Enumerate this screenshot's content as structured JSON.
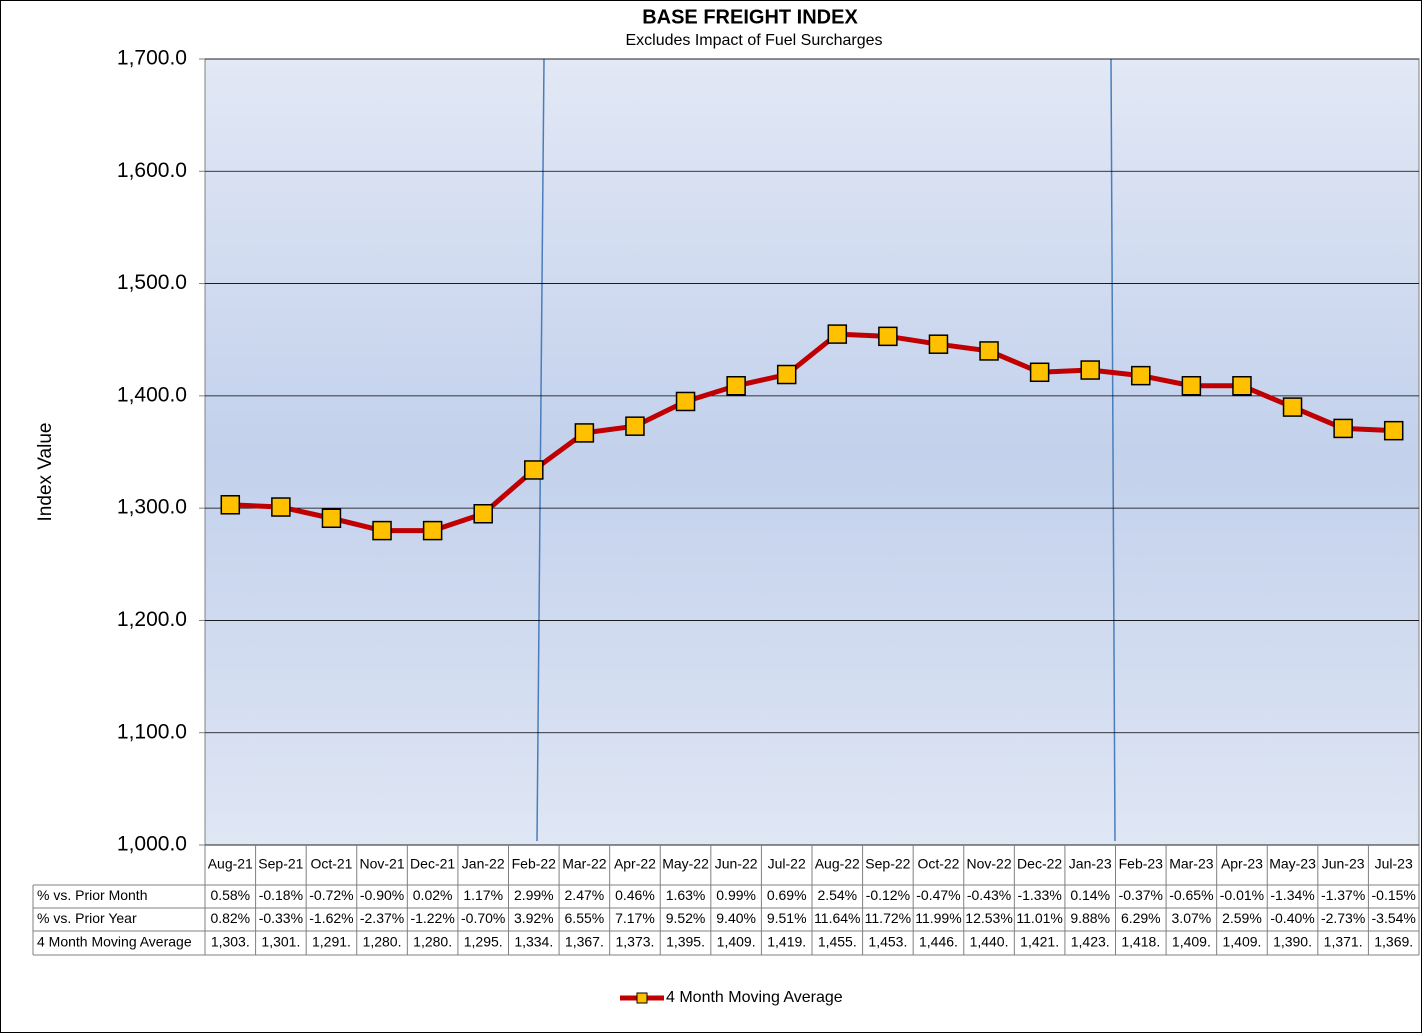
{
  "chart_data": {
    "type": "line",
    "title": "BASE FREIGHT INDEX",
    "subtitle": "Excludes Impact of Fuel Surcharges",
    "ylabel": "Index Value",
    "categories": [
      "Aug-21",
      "Sep-21",
      "Oct-21",
      "Nov-21",
      "Dec-21",
      "Jan-22",
      "Feb-22",
      "Mar-22",
      "Apr-22",
      "May-22",
      "Jun-22",
      "Jul-22",
      "Aug-22",
      "Sep-22",
      "Oct-22",
      "Nov-22",
      "Dec-22",
      "Jan-23",
      "Feb-23",
      "Mar-23",
      "Apr-23",
      "May-23",
      "Jun-23",
      "Jul-23"
    ],
    "series": [
      {
        "name": "4 Month Moving Average",
        "color": "#c00000",
        "marker_color": "#ffc000",
        "values": [
          1303,
          1301,
          1291,
          1280,
          1280,
          1295,
          1334,
          1367,
          1373,
          1395,
          1409,
          1419,
          1455,
          1453,
          1446,
          1440,
          1421,
          1423,
          1418,
          1409,
          1409,
          1390,
          1371,
          1369
        ],
        "value_labels": [
          "1,303.",
          "1,301.",
          "1,291.",
          "1,280.",
          "1,280.",
          "1,295.",
          "1,334.",
          "1,367.",
          "1,373.",
          "1,395.",
          "1,409.",
          "1,419.",
          "1,455.",
          "1,453.",
          "1,446.",
          "1,440.",
          "1,421.",
          "1,423.",
          "1,418.",
          "1,409.",
          "1,409.",
          "1,390.",
          "1,371.",
          "1,369."
        ]
      }
    ],
    "data_table": [
      {
        "label": "% vs. Prior Month",
        "cells": [
          "0.58%",
          "-0.18%",
          "-0.72%",
          "-0.90%",
          "0.02%",
          "1.17%",
          "2.99%",
          "2.47%",
          "0.46%",
          "1.63%",
          "0.99%",
          "0.69%",
          "2.54%",
          "-0.12%",
          "-0.47%",
          "-0.43%",
          "-1.33%",
          "0.14%",
          "-0.37%",
          "-0.65%",
          "-0.01%",
          "-1.34%",
          "-1.37%",
          "-0.15%"
        ]
      },
      {
        "label": "% vs. Prior Year",
        "cells": [
          "0.82%",
          "-0.33%",
          "-1.62%",
          "-2.37%",
          "-1.22%",
          "-0.70%",
          "3.92%",
          "6.55%",
          "7.17%",
          "9.52%",
          "9.40%",
          "9.51%",
          "11.64%",
          "11.72%",
          "11.99%",
          "12.53%",
          "11.01%",
          "9.88%",
          "6.29%",
          "3.07%",
          "2.59%",
          "-0.40%",
          "-2.73%",
          "-3.54%"
        ]
      }
    ],
    "ylim": [
      1000,
      1700
    ],
    "yticks": [
      {
        "value": 1000,
        "label": "1,000.0"
      },
      {
        "value": 1100,
        "label": "1,100.0"
      },
      {
        "value": 1200,
        "label": "1,200.0"
      },
      {
        "value": 1300,
        "label": "1,300.0"
      },
      {
        "value": 1400,
        "label": "1,400.0"
      },
      {
        "value": 1500,
        "label": "1,500.0"
      },
      {
        "value": 1600,
        "label": "1,600.0"
      },
      {
        "value": 1700,
        "label": "1,700.0"
      }
    ],
    "grid": true,
    "legend": "bottom"
  }
}
